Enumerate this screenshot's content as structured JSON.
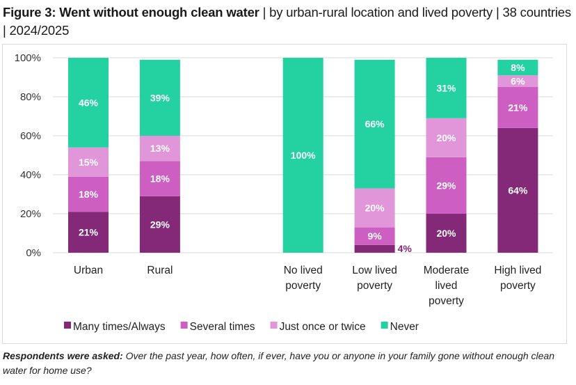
{
  "header": {
    "title_bold": "Figure 3: Went without enough clean water",
    "title_rest": " | by urban-rural location and lived poverty | 38 countries | 2024/2025"
  },
  "footnote": {
    "label": "Respondents were asked:",
    "question": " Over the past year, how often, if ever, have you or anyone in your family gone without enough clean water for home use?"
  },
  "chart_data": {
    "type": "bar",
    "stacked": true,
    "title": "Figure 3: Went without enough clean water | by urban-rural location and lived poverty | 38 countries | 2024/2025",
    "xlabel": "",
    "ylabel": "",
    "ylim": [
      0,
      100
    ],
    "yticks": [
      "0%",
      "20%",
      "40%",
      "60%",
      "80%",
      "100%"
    ],
    "grid": true,
    "legend_position": "bottom",
    "categories": [
      [
        "Urban"
      ],
      [
        "Rural"
      ],
      [
        "No lived",
        "poverty"
      ],
      [
        "Low lived",
        "poverty"
      ],
      [
        "Moderate",
        "lived",
        "poverty"
      ],
      [
        "High lived",
        "poverty"
      ]
    ],
    "category_slots": [
      0,
      1,
      3,
      4,
      5,
      6
    ],
    "series": [
      {
        "name": "Many times/Always",
        "color": "#842878",
        "values": [
          21,
          29,
          0,
          4,
          20,
          64
        ]
      },
      {
        "name": "Several times",
        "color": "#CD5FC3",
        "values": [
          18,
          18,
          0,
          9,
          29,
          21
        ]
      },
      {
        "name": "Just once or twice",
        "color": "#E096D8",
        "values": [
          15,
          13,
          0,
          20,
          20,
          6
        ]
      },
      {
        "name": "Never",
        "color": "#24D1A0",
        "values": [
          46,
          39,
          100,
          66,
          31,
          8
        ]
      }
    ],
    "labels": [
      [
        "21%",
        "18%",
        "15%",
        "46%"
      ],
      [
        "29%",
        "18%",
        "13%",
        "39%"
      ],
      [
        "",
        "",
        "",
        "100%"
      ],
      [
        "4%",
        "9%",
        "20%",
        "66%"
      ],
      [
        "20%",
        "29%",
        "20%",
        "31%"
      ],
      [
        "64%",
        "21%",
        "6%",
        "8%"
      ]
    ]
  }
}
